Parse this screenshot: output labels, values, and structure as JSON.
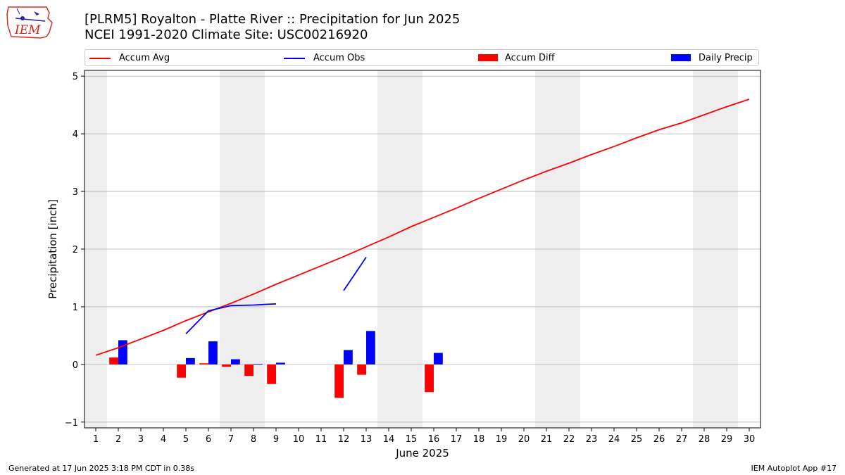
{
  "header": {
    "title_line1": "[PLRM5] Royalton - Platte River :: Precipitation for Jun 2025",
    "title_line2": "NCEI 1991-2020 Climate Site: USC00216920"
  },
  "logo": {
    "icon": "iem-logo",
    "text": "IEM"
  },
  "footer": {
    "left": "Generated at 17 Jun 2025 3:18 PM CDT in 0.38s",
    "right": "IEM Autoplot App #17"
  },
  "colors": {
    "avg": "#ff0000",
    "obs": "#0000ff",
    "diff": "#ff0000",
    "daily": "#0000ff",
    "weekend": "#eeeeee",
    "grid": "#b0b0b0"
  },
  "chart_data": {
    "type": "bar",
    "xlabel": "June 2025",
    "ylabel": "Precipitation [inch]",
    "xlim": [
      0.5,
      30.5
    ],
    "ylim": [
      -1.1,
      5.1
    ],
    "grid": true,
    "legend_position": "top",
    "x_ticks": [
      1,
      2,
      3,
      4,
      5,
      6,
      7,
      8,
      9,
      10,
      11,
      12,
      13,
      14,
      15,
      16,
      17,
      18,
      19,
      20,
      21,
      22,
      23,
      24,
      25,
      26,
      27,
      28,
      29,
      30
    ],
    "y_ticks": [
      -1,
      0,
      1,
      2,
      3,
      4,
      5
    ],
    "weekend_spans": [
      [
        0.5,
        1.5
      ],
      [
        6.5,
        8.5
      ],
      [
        13.5,
        15.5
      ],
      [
        20.5,
        22.5
      ],
      [
        27.5,
        29.5
      ]
    ],
    "series": [
      {
        "name": "Accum Avg",
        "kind": "line",
        "x": [
          1,
          2,
          3,
          4,
          5,
          6,
          7,
          8,
          9,
          10,
          11,
          12,
          13,
          14,
          15,
          16,
          17,
          18,
          19,
          20,
          21,
          22,
          23,
          24,
          25,
          26,
          27,
          28,
          29,
          30
        ],
        "values": [
          0.16,
          0.29,
          0.44,
          0.59,
          0.76,
          0.91,
          1.06,
          1.22,
          1.39,
          1.55,
          1.71,
          1.87,
          2.04,
          2.21,
          2.39,
          2.55,
          2.71,
          2.88,
          3.04,
          3.2,
          3.35,
          3.49,
          3.64,
          3.78,
          3.93,
          4.07,
          4.19,
          4.33,
          4.47,
          4.6
        ]
      },
      {
        "name": "Accum Obs",
        "kind": "line",
        "x": [
          5,
          6,
          7,
          8,
          9,
          10,
          11,
          12,
          13
        ],
        "values": [
          0.53,
          0.93,
          1.02,
          1.03,
          1.05,
          null,
          null,
          1.28,
          1.86
        ]
      },
      {
        "name": "Accum Diff",
        "kind": "bar",
        "x": [
          2,
          5,
          6,
          7,
          8,
          9,
          12,
          13,
          16
        ],
        "values": [
          0.12,
          -0.23,
          0.02,
          -0.04,
          -0.2,
          -0.34,
          -0.58,
          -0.18,
          -0.48
        ]
      },
      {
        "name": "Daily Precip",
        "kind": "bar",
        "x": [
          2,
          5,
          6,
          7,
          8,
          9,
          12,
          13,
          16
        ],
        "values": [
          0.42,
          0.11,
          0.4,
          0.09,
          0.01,
          0.03,
          0.25,
          0.58,
          0.2
        ]
      }
    ]
  }
}
